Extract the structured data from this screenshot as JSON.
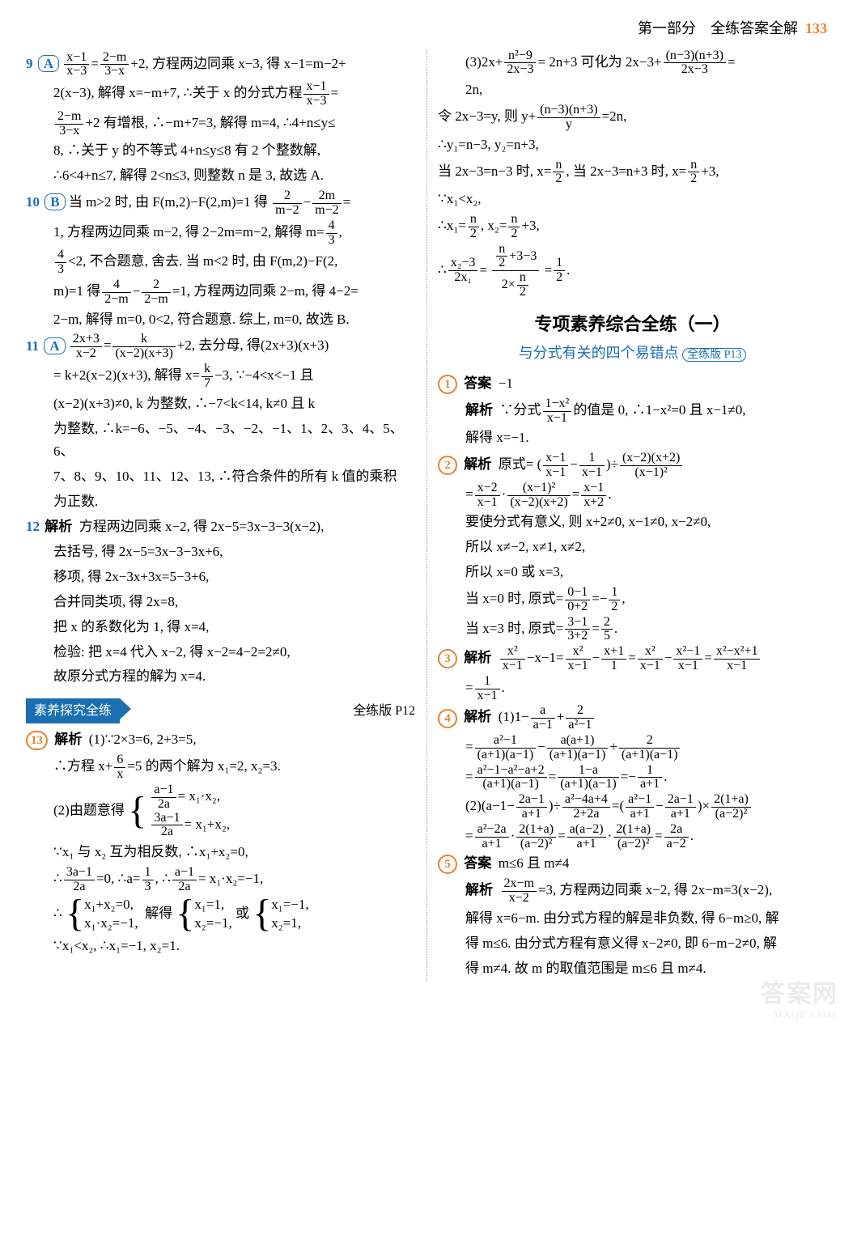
{
  "header": {
    "part": "第一部分　全练答案全解",
    "page": "133"
  },
  "left": {
    "q9": {
      "num": "9",
      "ans": "A",
      "l1a": "x−1",
      "l1b": "x−3",
      "l2a": "2−m",
      "l2b": "3−x",
      "t1": "+2, 方程两边同乘 x−3, 得 x−1=m−2+",
      "t2": "2(x−3), 解得 x=−m+7, ∴关于 x 的分式方程",
      "l3a": "x−1",
      "l3b": "x−3",
      "t3": "=",
      "l4a": "2−m",
      "l4b": "3−x",
      "t4": "+2 有增根, ∴−m+7=3, 解得 m=4, ∴4+n≤y≤",
      "t5": "8, ∴关于 y 的不等式 4+n≤y≤8 有 2 个整数解,",
      "t6": "∴6<4+n≤7, 解得 2<n≤3, 则整数 n 是 3, 故选 A."
    },
    "q10": {
      "num": "10",
      "ans": "B",
      "t1": "当 m>2 时, 由 F(m,2)−F(2,m)=1 得",
      "f1a": "2",
      "f1b": "m−2",
      "f2a": "2m",
      "f2b": "m−2",
      "t2": "1, 方程两边同乘 m−2, 得 2−2m=m−2, 解得 m=",
      "f3a": "4",
      "f3b": "3",
      "f4a": "4",
      "f4b": "3",
      "t3": "<2, 不合题意, 舍去. 当 m<2 时, 由 F(m,2)−F(2,",
      "t4": "m)=1 得",
      "f5a": "4",
      "f5b": "2−m",
      "f6a": "2",
      "f6b": "2−m",
      "t5": "=1, 方程两边同乘 2−m, 得 4−2=",
      "t6": "2−m, 解得 m=0, 0<2, 符合题意. 综上, m=0, 故选 B."
    },
    "q11": {
      "num": "11",
      "ans": "A",
      "f1a": "2x+3",
      "f1b": "x−2",
      "f2a": "k",
      "f2b": "(x−2)(x+3)",
      "t1": "+2, 去分母, 得(2x+3)(x+3)",
      "t2": "= k+2(x−2)(x+3), 解得 x=",
      "f3a": "k",
      "f3b": "7",
      "t3": "−3, ∵−4<x<−1 且",
      "t4": "(x−2)(x+3)≠0, k 为整数, ∴−7<k<14, k≠0 且 k",
      "t5": "为整数, ∴k=−6、−5、−4、−3、−2、−1、1、2、3、4、5、6、",
      "t6": "7、8、9、10、11、12、13, ∴符合条件的所有 k 值的乘积",
      "t7": "为正数."
    },
    "q12": {
      "num": "12",
      "label": "解析",
      "t1": "方程两边同乘 x−2, 得 2x−5=3x−3−3(x−2),",
      "t2": "去括号, 得 2x−5=3x−3−3x+6,",
      "t3": "移项, 得 2x−3x+3x=5−3+6,",
      "t4": "合并同类项, 得 2x=8,",
      "t5": "把 x 的系数化为 1, 得 x=4,",
      "t6": "检验: 把 x=4 代入 x−2, 得 x−2=4−2=2≠0,",
      "t7": "故原分式方程的解为 x=4."
    },
    "sec": {
      "title": "素养探究全练",
      "ref": "全练版 P12"
    },
    "q13": {
      "num": "13",
      "label": "解析",
      "p1": "(1)∵2×3=6, 2+3=5,",
      "p2a": "∴方程 x+",
      "f1a": "6",
      "f1b": "x",
      "p2b": "=5 的两个解为 x₁=2, x₂=3.",
      "p3": "(2)由题意得",
      "b1a": "a−1",
      "b1b": "2a",
      "b1t": "= x₁·x₂,",
      "b2a": "3a−1",
      "b2b": "2a",
      "b2t": "= x₁+x₂,",
      "p4": "∵x₁ 与 x₂ 互为相反数, ∴x₁+x₂=0,",
      "p5a": "∴",
      "f2a": "3a−1",
      "f2b": "2a",
      "p5b": "=0, ∴a=",
      "f3a": "1",
      "f3b": "3",
      "p5c": ", ∴",
      "f4a": "a−1",
      "f4b": "2a",
      "p5d": "= x₁·x₂=−1,",
      "p6": "∴",
      "c1a": "x₁+x₂=0,",
      "c1b": "x₁·x₂=−1,",
      "p6m": "解得",
      "c2a": "x₁=1,",
      "c2b": "x₂=−1,",
      "p6o": "或",
      "c3a": "x₁=−1,",
      "c3b": "x₂=1,",
      "p7": "∵x₁<x₂, ∴x₁=−1, x₂=1.",
      "p8a": "(3)2x+",
      "f5a": "n²−9",
      "f5b": "2x−3",
      "p8b": "= 2n+3 可化为 2x−3+",
      "f6a": "(n−3)(n+3)",
      "f6b": "2x−3",
      "p8c": "=",
      "p9": "2n,"
    }
  },
  "right": {
    "cont": {
      "t1": "令 2x−3=y, 则 y+",
      "f1a": "(n−3)(n+3)",
      "f1b": "y",
      "t1b": "=2n,",
      "t2": "∴y₁=n−3, y₂=n+3,",
      "t3a": "当 2x−3=n−3 时, x=",
      "f2a": "n",
      "f2b": "2",
      "t3b": ", 当 2x−3=n+3 时, x=",
      "f3a": "n",
      "f3b": "2",
      "t3c": "+3,",
      "t4": "∵x₁<x₂,",
      "t5a": "∴x₁=",
      "f4a": "n",
      "f4b": "2",
      "t5b": ", x₂=",
      "f5a": "n",
      "f5b": "2",
      "t5c": "+3,",
      "t6a": "∴",
      "f6a": "x₂−3",
      "f6b": "2x₁",
      "t6b": "=",
      "f7aTop": "n",
      "f7aBot": "2",
      "f7aTail": "+3−3",
      "f7bTop": "n",
      "f7bBot": "2",
      "f7bHead": "2×",
      "t6c": "=",
      "f8a": "1",
      "f8b": "2",
      "t6d": "."
    },
    "hTitle": "专项素养综合全练（一）",
    "hSub": "与分式有关的四个易错点",
    "hRef": "全练版 P13",
    "q1": {
      "num": "1",
      "ansLabel": "答案",
      "ans": "−1",
      "jxLabel": "解析",
      "t1a": "∵分式",
      "f1a": "1−x²",
      "f1b": "x−1",
      "t1b": "的值是 0, ∴1−x²=0 且 x−1≠0,",
      "t2": "解得 x=−1."
    },
    "q2": {
      "num": "2",
      "label": "解析",
      "t1": "原式=",
      "pA1": "x−1",
      "pA2": "x−1",
      "pB1": "1",
      "pB2": "x−1",
      "t1m": "÷",
      "f1a": "(x−2)(x+2)",
      "f1b": "(x−1)²",
      "t2a": "=",
      "f2a": "x−2",
      "f2b": "x−1",
      "t2b": "·",
      "f3a": "(x−1)²",
      "f3b": "(x−2)(x+2)",
      "t2c": "=",
      "f4a": "x−1",
      "f4b": "x+2",
      "t2d": ".",
      "t3": "要使分式有意义, 则 x+2≠0, x−1≠0, x−2≠0,",
      "t4": "所以 x≠−2, x≠1, x≠2,",
      "t5": "所以 x=0 或 x=3,",
      "t6a": "当 x=0 时, 原式=",
      "f5a": "0−1",
      "f5b": "0+2",
      "t6b": "=−",
      "f6a": "1",
      "f6b": "2",
      "t6c": ",",
      "t7a": "当 x=3 时, 原式=",
      "f7a": "3−1",
      "f7b": "3+2",
      "t7b": "=",
      "f8a": "2",
      "f8b": "5",
      "t7c": "."
    },
    "q3": {
      "num": "3",
      "label": "解析",
      "f1a": "x²",
      "f1b": "x−1",
      "t1": "−x−1=",
      "f2a": "x²",
      "f2b": "x−1",
      "t2": "−",
      "f3a": "x+1",
      "f3b": "1",
      "t3": "=",
      "f4a": "x²",
      "f4b": "x−1",
      "t4": "−",
      "f5a": "x²−1",
      "f5b": "x−1",
      "t5": "=",
      "f6a": "x²−x²+1",
      "f6b": "x−1",
      "t6": "=",
      "f7a": "1",
      "f7b": "x−1",
      "t7": "."
    },
    "q4": {
      "num": "4",
      "label": "解析",
      "p1a": "(1)1−",
      "f1a": "a",
      "f1b": "a−1",
      "p1b": "+",
      "f2a": "2",
      "f2b": "a²−1",
      "l2a": "=",
      "f3a": "a²−1",
      "f3b": "(a+1)(a−1)",
      "l2b": "−",
      "f4a": "a(a+1)",
      "f4b": "(a+1)(a−1)",
      "l2c": "+",
      "f5a": "2",
      "f5b": "(a+1)(a−1)",
      "l3a": "=",
      "f6a": "a²−1−a²−a+2",
      "f6b": "(a+1)(a−1)",
      "l3b": "=",
      "f7a": "1−a",
      "f7b": "(a+1)(a−1)",
      "l3c": "=−",
      "f8a": "1",
      "f8b": "a+1",
      "l3d": ".",
      "p2a": "(2)",
      "pOpen": "(",
      "pIn": "a−1−",
      "f9a": "2a−1",
      "f9b": "a+1",
      "pClose": ")÷",
      "f10a": "a²−4a+4",
      "f10b": "2+2a",
      "p2b": "=",
      "pOpen2": "(",
      "f11a": "a²−1",
      "f11b": "a+1",
      "pDash": "−",
      "f12a": "2a−1",
      "f12b": "a+1",
      "pClose2": ")×",
      "f13a": "2(1+a)",
      "f13b": "(a−2)²",
      "l5a": "=",
      "f14a": "a²−2a",
      "f14b": "a+1",
      "l5b": "·",
      "f15a": "2(1+a)",
      "f15b": "(a−2)²",
      "l5c": "=",
      "f16a": "a(a−2)",
      "f16b": "a+1",
      "l5d": "·",
      "f17a": "2(1+a)",
      "f17b": "(a−2)²",
      "l5e": "=",
      "f18a": "2a",
      "f18b": "a−2",
      "l5f": "."
    },
    "q5": {
      "num": "5",
      "ansLabel": "答案",
      "ans": "m≤6 且 m≠4",
      "jxLabel": "解析",
      "f1a": "2x−m",
      "f1b": "x−2",
      "t1": "=3, 方程两边同乘 x−2, 得 2x−m=3(x−2),",
      "t2": "解得 x=6−m. 由分式方程的解是非负数, 得 6−m≥0, 解",
      "t3": "得 m≤6. 由分式方程有意义得 x−2≠0, 即 6−m−2≠0, 解",
      "t4": "得 m≠4. 故 m 的取值范围是 m≤6 且 m≠4."
    }
  },
  "wm": {
    "big": "答案网",
    "small": "MXQE.COM"
  }
}
